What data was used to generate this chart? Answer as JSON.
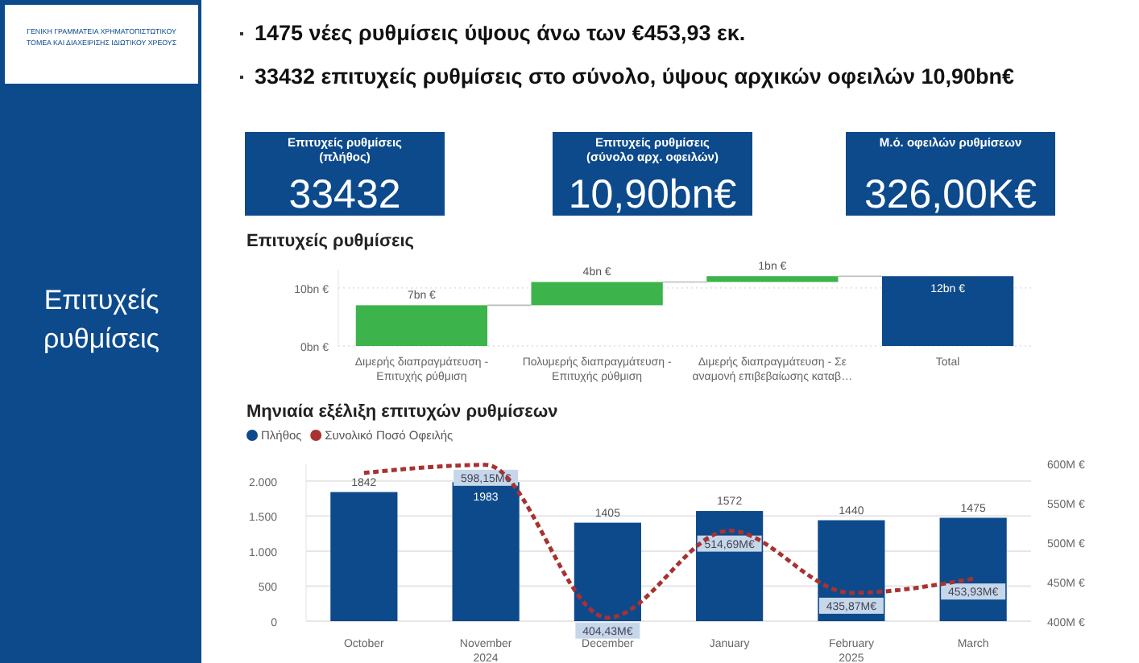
{
  "chart_data": [
    {
      "type": "other",
      "title": "Επιτυχείς ρυθμίσεις",
      "annotations": [
        "ΓΕΝΙΚΗ ΓΡΑΜΜΑΤΕΙΑ ΧΡΗΜΑΤΟΠΙΣΤΩΤΙΚΟΥ ΤΟΜΕΑ ΚΑΙ ΔΙΑΧΕΙΡΙΣΗΣ ΙΔΙΩΤΙΚΟΥ ΧΡΕΟΥΣ",
        "1475 νέες ρυθμίσεις ύψους άνω των €453,93 εκ.",
        "33432  επιτυχείς ρυθμίσεις στο σύνολο, ύψους αρχικών οφειλών  10,90bn€",
        "Επιτυχείς ρυθμίσεις (πλήθος)",
        "33432",
        "Επιτυχείς ρυθμίσεις (σύνολο αρχ. οφειλών)",
        "10,90bn€",
        "Μ.ό. οφειλών ρυθμίσεων",
        "326,00K€"
      ]
    },
    {
      "type": "bar",
      "title": "Επιτυχείς ρυθμίσεις",
      "categories": [
        "Διμερής διαπραγμάτευση - Επιτυχής ρύθμιση",
        "Πολυμερής διαπραγμάτευση - Επιτυχής ρύθμιση",
        "Διμερής διαπραγμάτευση - Σε αναμονή επιβεβαίωσης καταβ…",
        "Total"
      ],
      "values": [
        7,
        4,
        1,
        12
      ],
      "base": [
        0,
        7,
        11,
        0
      ],
      "colors": [
        "#3cb44b",
        "#3cb44b",
        "#3cb44b",
        "#0d4a8c"
      ],
      "value_labels": [
        "7bn €",
        "4bn €",
        "1bn €",
        "12bn €"
      ],
      "ylim": [
        0,
        13
      ],
      "yticks": [
        {
          "value": 0,
          "label": "0bn €"
        },
        {
          "value": 10,
          "label": "10bn €"
        }
      ],
      "grid": "y"
    },
    {
      "type": "bar",
      "title": "Μηνιαία εξέλιξη επιτυχών ρυθμίσεων",
      "categories": [
        "October",
        "November",
        "December",
        "January",
        "February",
        "March"
      ],
      "series": [
        {
          "name": "Πλήθος",
          "color": "#0d4a8c",
          "values": [
            1842,
            1983,
            1405,
            1572,
            1440,
            1475
          ],
          "value_labels": [
            "1842",
            "1983",
            "1405",
            "1572",
            "1440",
            "1475"
          ]
        },
        {
          "name": "Συνολικό Ποσό Οφειλής",
          "type": "line",
          "axis": "y2",
          "color": "#a83232",
          "line_style": "dotted",
          "marker": "none",
          "values": [
            588,
            598.15,
            404.43,
            514.69,
            435.87,
            453.93
          ],
          "value_labels": [
            null,
            "598,15M€",
            "404,43M€",
            "514,69M€",
            "435,87M€",
            "453,93M€"
          ]
        }
      ],
      "ylim": [
        0,
        2250
      ],
      "yticks": [
        0,
        500,
        {
          "value": 1000,
          "label": "1.000"
        },
        {
          "value": 1500,
          "label": "1.500"
        },
        {
          "value": 2000,
          "label": "2.000"
        }
      ],
      "y2lim": [
        400,
        600
      ],
      "y2ticks": [
        {
          "value": 400,
          "label": "400M €"
        },
        {
          "value": 450,
          "label": "450M €"
        },
        {
          "value": 500,
          "label": "500M €"
        },
        {
          "value": 550,
          "label": "550M €"
        },
        {
          "value": 600,
          "label": "600M €"
        }
      ],
      "annotations": [
        "2024",
        "2025"
      ],
      "legend": "top left",
      "grid": "y"
    }
  ]
}
